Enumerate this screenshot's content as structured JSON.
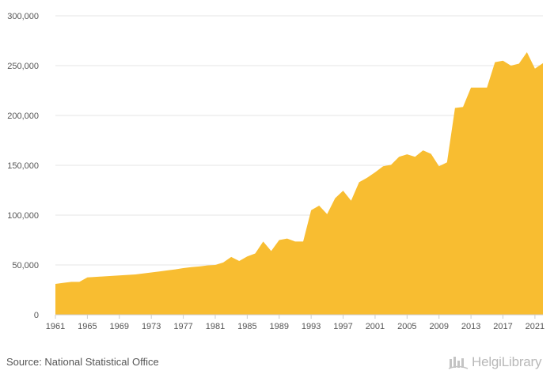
{
  "chart_data": {
    "type": "area",
    "x": [
      1961,
      1962,
      1963,
      1964,
      1965,
      1966,
      1967,
      1968,
      1969,
      1970,
      1971,
      1972,
      1973,
      1974,
      1975,
      1976,
      1977,
      1978,
      1979,
      1980,
      1981,
      1982,
      1983,
      1984,
      1985,
      1986,
      1987,
      1988,
      1989,
      1990,
      1991,
      1992,
      1993,
      1994,
      1995,
      1996,
      1997,
      1998,
      1999,
      2000,
      2001,
      2002,
      2003,
      2004,
      2005,
      2006,
      2007,
      2008,
      2009,
      2010,
      2011,
      2012,
      2013,
      2014,
      2015,
      2016,
      2017,
      2018,
      2019,
      2020,
      2021,
      2022
    ],
    "series": [
      {
        "values": [
          31000,
          32000,
          33000,
          33000,
          37500,
          38000,
          38500,
          39000,
          39500,
          40000,
          40500,
          41500,
          42500,
          43500,
          44500,
          45500,
          46800,
          47800,
          48500,
          49500,
          50000,
          52500,
          58000,
          54000,
          58500,
          61500,
          73500,
          64000,
          75000,
          76500,
          73500,
          73500,
          105000,
          109500,
          101000,
          117000,
          124500,
          114500,
          133000,
          137500,
          143000,
          149000,
          150500,
          158500,
          161000,
          158500,
          165000,
          161500,
          149000,
          153000,
          207500,
          208500,
          228000,
          228000,
          228000,
          253500,
          255000,
          250000,
          252000,
          263500,
          247000,
          252500
        ]
      }
    ],
    "y_ticks": [
      "0",
      "50,000",
      "100,000",
      "150,000",
      "200,000",
      "250,000",
      "300,000"
    ],
    "x_tick_labels": [
      "1961",
      "1965",
      "1969",
      "1973",
      "1977",
      "1981",
      "1985",
      "1989",
      "1993",
      "1997",
      "2001",
      "2005",
      "2009",
      "2013",
      "2017",
      "2021"
    ],
    "ylim": [
      0,
      300000
    ],
    "grid": true,
    "legend": "none",
    "colors": {
      "area": "#f8bd31",
      "grid": "#e6e6e6"
    }
  },
  "source": "Source: National Statistical Office",
  "logo": {
    "text": "HelgiLibrary",
    "icon": "helgi-library-icon"
  }
}
